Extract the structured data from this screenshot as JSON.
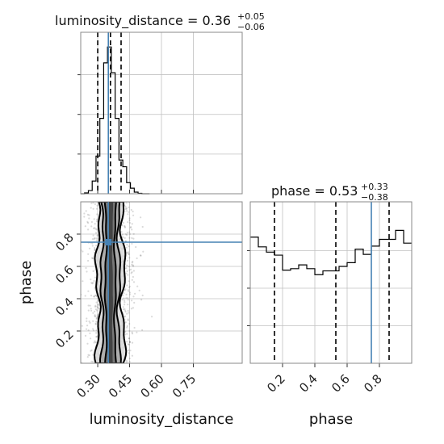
{
  "chart_data": {
    "type": "corner",
    "colors": {
      "truth": "#4682b4",
      "hist": "#000000",
      "contour": "#000000",
      "grid": "#c0c0c0",
      "axes": "#888888",
      "points": "#555555"
    },
    "parameters": [
      "luminosity_distance",
      "phase"
    ],
    "luminosity_distance": {
      "title_main": "luminosity_distance = 0.36",
      "err_plus": "+0.05",
      "err_minus": "−0.06",
      "median": 0.36,
      "quantiles": [
        0.3,
        0.36,
        0.41
      ],
      "truth": 0.35,
      "xlim": [
        0.22,
        0.98
      ],
      "ticks": [
        0.3,
        0.45,
        0.6,
        0.75
      ],
      "tick_labels": [
        "0.30",
        "0.45",
        "0.60",
        "0.75"
      ],
      "xlabel": "luminosity_distance",
      "hist_edges": [
        0.22,
        0.238,
        0.256,
        0.274,
        0.292,
        0.31,
        0.328,
        0.346,
        0.364,
        0.382,
        0.4,
        0.418,
        0.436,
        0.454,
        0.472,
        0.49,
        0.508,
        0.526,
        0.544
      ],
      "hist_counts": [
        0,
        2,
        8,
        32,
        95,
        190,
        330,
        370,
        305,
        190,
        85,
        68,
        28,
        14,
        4,
        1,
        0,
        0
      ]
    },
    "phase": {
      "title_main": "phase = 0.53",
      "err_plus": "+0.33",
      "err_minus": "−0.38",
      "median": 0.53,
      "quantiles": [
        0.15,
        0.53,
        0.86
      ],
      "truth": 0.75,
      "xlim": [
        0.0,
        1.0
      ],
      "ticks": [
        0.2,
        0.4,
        0.6,
        0.8
      ],
      "tick_labels": [
        "0.2",
        "0.4",
        "0.6",
        "0.8"
      ],
      "ylabel": "phase",
      "xlabel": "phase",
      "hist_edges": [
        0.0,
        0.05,
        0.1,
        0.15,
        0.2,
        0.25,
        0.3,
        0.35,
        0.4,
        0.45,
        0.5,
        0.55,
        0.6,
        0.65,
        0.7,
        0.75,
        0.8,
        0.85,
        0.9,
        0.95,
        1.0
      ],
      "hist_counts": [
        168,
        155,
        148,
        144,
        124,
        126,
        131,
        126,
        118,
        123,
        123,
        129,
        134,
        152,
        145,
        156,
        165,
        165,
        177,
        160
      ]
    },
    "joint": {
      "x": "luminosity_distance",
      "y": "phase",
      "truth": [
        0.35,
        0.75
      ],
      "contour_levels": 3,
      "x_center": 0.36,
      "x_spread": 0.04,
      "scatter_points": 1400
    }
  }
}
